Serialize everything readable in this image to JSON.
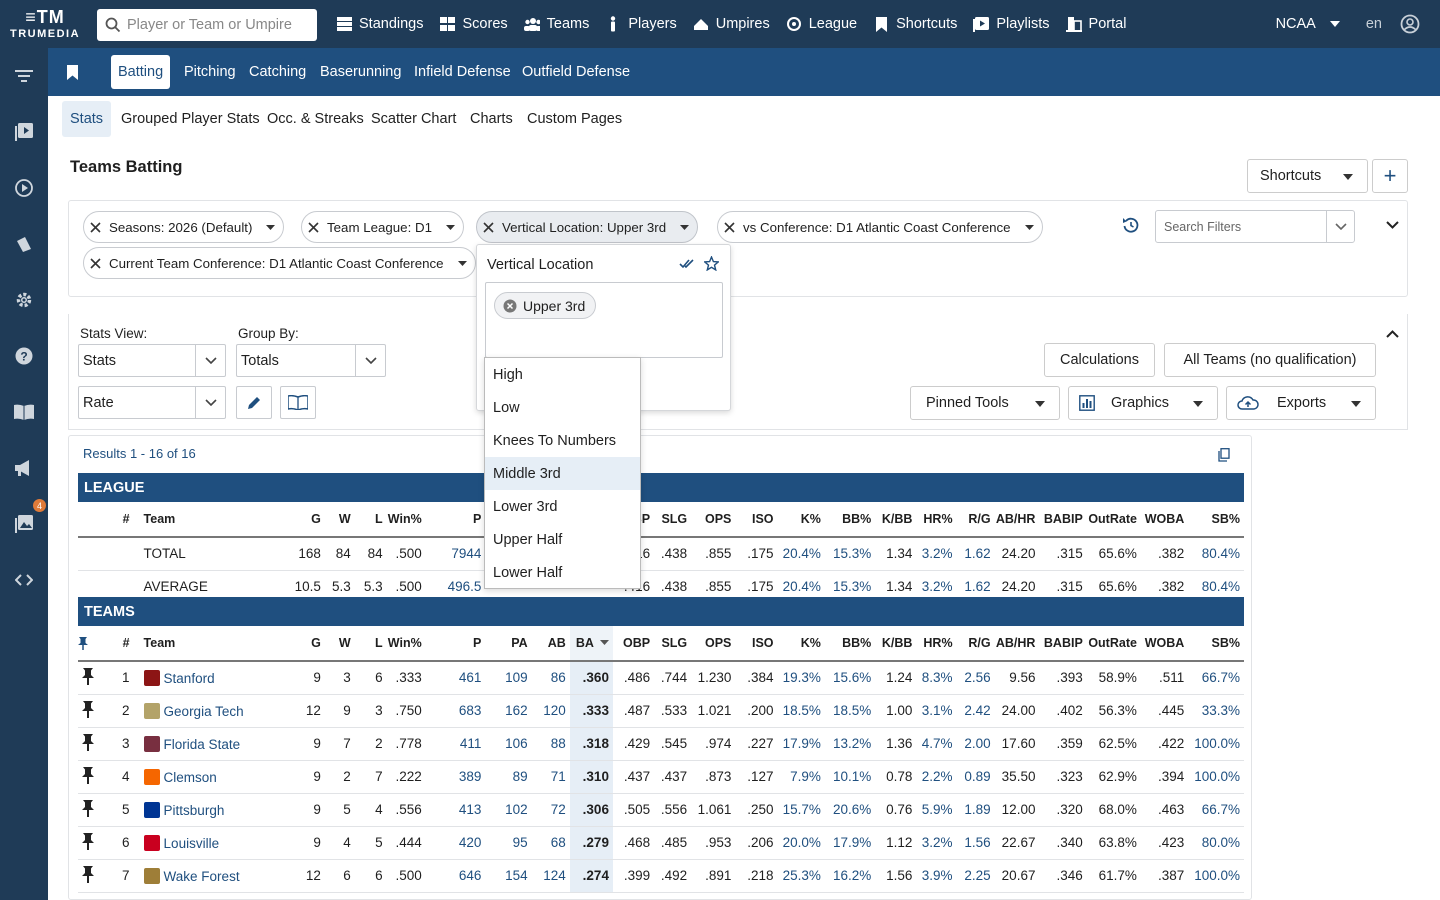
{
  "app": {
    "logo_mark": "≡TM",
    "logo_word": "TRUMEDIA"
  },
  "search": {
    "placeholder": "Player or Team or Umpire"
  },
  "nav": {
    "items": [
      {
        "label": "Standings",
        "icon": "standings-icon"
      },
      {
        "label": "Scores",
        "icon": "scores-icon"
      },
      {
        "label": "Teams",
        "icon": "teams-icon"
      },
      {
        "label": "Players",
        "icon": "players-icon"
      },
      {
        "label": "Umpires",
        "icon": "umpires-icon"
      },
      {
        "label": "League",
        "icon": "league-icon"
      },
      {
        "label": "Shortcuts",
        "icon": "bookmark-icon"
      },
      {
        "label": "Playlists",
        "icon": "playlists-icon"
      },
      {
        "label": "Portal",
        "icon": "portal-icon"
      }
    ],
    "org": "NCAA",
    "lang": "en"
  },
  "sidebar": {
    "notification_count": "4"
  },
  "tabs": [
    "Batting",
    "Pitching",
    "Catching",
    "Baserunning",
    "Infield Defense",
    "Outfield Defense"
  ],
  "subtabs": [
    "Stats",
    "Grouped Player Stats",
    "Occ. & Streaks",
    "Scatter Chart",
    "Charts",
    "Custom Pages"
  ],
  "page": {
    "title": "Teams Batting",
    "shortcuts_label": "Shortcuts",
    "add_label": "+"
  },
  "filters": {
    "chips": [
      "Seasons: 2026 (Default)",
      "Team League: D1",
      "Vertical Location: Upper 3rd",
      "vs Conference: D1 Atlantic Coast Conference",
      "Current Team Conference: D1 Atlantic Coast Conference"
    ],
    "search_placeholder": "Search Filters"
  },
  "controls": {
    "stats_view_label": "Stats View:",
    "stats_view_value": "Stats",
    "group_by_label": "Group By:",
    "group_by_value": "Totals",
    "rate_value": "Rate",
    "calculations": "Calculations",
    "all_teams": "All Teams (no qualification)",
    "pinned_tools": "Pinned Tools",
    "graphics": "Graphics",
    "exports": "Exports"
  },
  "results": {
    "text": "Results 1 - 16 of 16"
  },
  "league": {
    "section": "LEAGUE",
    "headers": [
      "#",
      "Team",
      "G",
      "W",
      "L",
      "Win%",
      "P",
      "PA",
      "AB",
      "BA",
      "OBP",
      "SLG",
      "OPS",
      "ISO",
      "K%",
      "BB%",
      "K/BB",
      "HR%",
      "R/G",
      "AB/HR",
      "BABIP",
      "OutRate",
      "WOBA",
      "SB%"
    ],
    "rows": [
      [
        "",
        "TOTAL",
        "168",
        "84",
        "84",
        ".500",
        "7944",
        "",
        "",
        "",
        ".416",
        ".438",
        ".855",
        ".175",
        "20.4%",
        "15.3%",
        "1.34",
        "3.2%",
        "1.62",
        "24.20",
        ".315",
        "65.6%",
        ".382",
        "80.4%"
      ],
      [
        "",
        "AVERAGE",
        "10.5",
        "5.3",
        "5.3",
        ".500",
        "496.5",
        "",
        "",
        "",
        ".416",
        ".438",
        ".855",
        ".175",
        "20.4%",
        "15.3%",
        "1.34",
        "3.2%",
        "1.62",
        "24.20",
        ".315",
        "65.6%",
        ".382",
        "80.4%"
      ]
    ]
  },
  "teams": {
    "section": "TEAMS",
    "headers": [
      "#",
      "Team",
      "G",
      "W",
      "L",
      "Win%",
      "P",
      "PA",
      "AB",
      "BA",
      "OBP",
      "SLG",
      "OPS",
      "ISO",
      "K%",
      "BB%",
      "K/BB",
      "HR%",
      "R/G",
      "AB/HR",
      "BABIP",
      "OutRate",
      "WOBA",
      "SB%"
    ],
    "rows": [
      {
        "n": "1",
        "team": "Stanford",
        "color": "#8c1515",
        "v": [
          "9",
          "3",
          "6",
          ".333",
          "461",
          "109",
          "86",
          ".360",
          ".486",
          ".744",
          "1.230",
          ".384",
          "19.3%",
          "15.6%",
          "1.24",
          "8.3%",
          "2.56",
          "9.56",
          ".393",
          "58.9%",
          ".511",
          "66.7%"
        ]
      },
      {
        "n": "2",
        "team": "Georgia Tech",
        "color": "#b3a369",
        "v": [
          "12",
          "9",
          "3",
          ".750",
          "683",
          "162",
          "120",
          ".333",
          ".487",
          ".533",
          "1.021",
          ".200",
          "18.5%",
          "18.5%",
          "1.00",
          "3.1%",
          "2.42",
          "24.00",
          ".402",
          "56.3%",
          ".445",
          "33.3%"
        ]
      },
      {
        "n": "3",
        "team": "Florida State",
        "color": "#782f40",
        "v": [
          "9",
          "7",
          "2",
          ".778",
          "411",
          "106",
          "88",
          ".318",
          ".429",
          ".545",
          ".974",
          ".227",
          "17.9%",
          "13.2%",
          "1.36",
          "4.7%",
          "2.00",
          "17.60",
          ".359",
          "62.5%",
          ".422",
          "100.0%"
        ]
      },
      {
        "n": "4",
        "team": "Clemson",
        "color": "#f56600",
        "v": [
          "9",
          "2",
          "7",
          ".222",
          "389",
          "89",
          "71",
          ".310",
          ".437",
          ".437",
          ".873",
          ".127",
          "7.9%",
          "10.1%",
          "0.78",
          "2.2%",
          "0.89",
          "35.50",
          ".323",
          "62.9%",
          ".394",
          "100.0%"
        ]
      },
      {
        "n": "5",
        "team": "Pittsburgh",
        "color": "#003594",
        "v": [
          "9",
          "5",
          "4",
          ".556",
          "413",
          "102",
          "72",
          ".306",
          ".505",
          ".556",
          "1.061",
          ".250",
          "15.7%",
          "20.6%",
          "0.76",
          "5.9%",
          "1.89",
          "12.00",
          ".320",
          "68.0%",
          ".463",
          "66.7%"
        ]
      },
      {
        "n": "6",
        "team": "Louisville",
        "color": "#c9001f",
        "v": [
          "9",
          "4",
          "5",
          ".444",
          "420",
          "95",
          "68",
          ".279",
          ".468",
          ".485",
          ".953",
          ".206",
          "20.0%",
          "17.9%",
          "1.12",
          "3.2%",
          "1.56",
          "22.67",
          ".340",
          "63.8%",
          ".423",
          "80.0%"
        ]
      },
      {
        "n": "7",
        "team": "Wake Forest",
        "color": "#9e7e38",
        "v": [
          "12",
          "6",
          "6",
          ".500",
          "646",
          "154",
          "124",
          ".274",
          ".399",
          ".492",
          ".891",
          ".218",
          "25.3%",
          "16.2%",
          "1.56",
          "3.9%",
          "2.25",
          "20.67",
          ".346",
          "61.7%",
          ".387",
          "100.0%"
        ]
      }
    ]
  },
  "dropdown": {
    "title": "Vertical Location",
    "selected_tag": "Upper 3rd",
    "options": [
      "High",
      "Low",
      "Knees To Numbers",
      "Middle 3rd",
      "Lower 3rd",
      "Upper Half",
      "Lower Half"
    ],
    "highlighted": "Middle 3rd"
  },
  "colors": {
    "nav_bg": "#1f3b57",
    "tab_bg": "#1f4f7f",
    "link": "#1f4f7f",
    "ba_highlight": "#e6eef6"
  }
}
